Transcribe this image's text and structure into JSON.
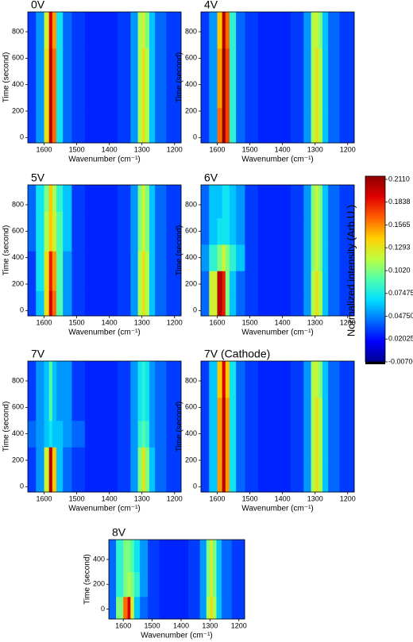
{
  "chart_data": [
    {
      "type": "heatmap",
      "title": "0V",
      "xlabel": "Wavenumber (cm⁻¹)",
      "ylabel": "Time (second)",
      "xlim": [
        1650,
        1180
      ],
      "ylim": [
        -40,
        950
      ],
      "xticks": [
        1600,
        1500,
        1400,
        1300,
        1200
      ],
      "yticks": [
        0,
        200,
        400,
        600,
        800
      ],
      "x": [
        1640,
        1610,
        1590,
        1580,
        1570,
        1555,
        1530,
        1500,
        1450,
        1400,
        1350,
        1320,
        1305,
        1295,
        1285,
        1270,
        1250,
        1200
      ],
      "y": [
        0,
        450,
        900
      ],
      "z": [
        [
          0.03,
          0.05,
          0.13,
          0.2,
          0.16,
          0.07,
          0.04,
          0.03,
          0.025,
          0.025,
          0.03,
          0.05,
          0.11,
          0.13,
          0.11,
          0.06,
          0.04,
          0.03
        ],
        [
          0.03,
          0.05,
          0.13,
          0.2,
          0.16,
          0.07,
          0.04,
          0.03,
          0.025,
          0.025,
          0.03,
          0.05,
          0.11,
          0.13,
          0.11,
          0.06,
          0.04,
          0.03
        ],
        [
          0.03,
          0.05,
          0.12,
          0.19,
          0.15,
          0.07,
          0.04,
          0.03,
          0.025,
          0.025,
          0.03,
          0.05,
          0.11,
          0.12,
          0.1,
          0.06,
          0.04,
          0.03
        ]
      ]
    },
    {
      "type": "heatmap",
      "title": "4V",
      "xlabel": "Wavenumber (cm⁻¹)",
      "ylabel": "Time (second)",
      "xlim": [
        1650,
        1180
      ],
      "ylim": [
        -40,
        950
      ],
      "xticks": [
        1600,
        1500,
        1400,
        1300,
        1200
      ],
      "yticks": [
        0,
        200,
        400,
        600,
        800
      ],
      "x": [
        1640,
        1610,
        1590,
        1580,
        1570,
        1555,
        1530,
        1500,
        1450,
        1400,
        1350,
        1320,
        1305,
        1295,
        1285,
        1270,
        1250,
        1200
      ],
      "y": [
        0,
        450,
        900
      ],
      "z": [
        [
          0.03,
          0.05,
          0.16,
          0.21,
          0.17,
          0.08,
          0.04,
          0.03,
          0.025,
          0.025,
          0.03,
          0.05,
          0.11,
          0.13,
          0.11,
          0.06,
          0.04,
          0.03
        ],
        [
          0.03,
          0.05,
          0.15,
          0.21,
          0.17,
          0.08,
          0.04,
          0.03,
          0.025,
          0.025,
          0.03,
          0.05,
          0.11,
          0.13,
          0.11,
          0.06,
          0.04,
          0.03
        ],
        [
          0.03,
          0.05,
          0.14,
          0.2,
          0.16,
          0.08,
          0.04,
          0.03,
          0.025,
          0.025,
          0.03,
          0.05,
          0.11,
          0.12,
          0.1,
          0.06,
          0.04,
          0.03
        ]
      ]
    },
    {
      "type": "heatmap",
      "title": "5V",
      "xlabel": "Wavenumber (cm⁻¹)",
      "ylabel": "Time (second)",
      "xlim": [
        1650,
        1180
      ],
      "ylim": [
        -40,
        950
      ],
      "xticks": [
        1600,
        1500,
        1400,
        1300,
        1200
      ],
      "yticks": [
        0,
        200,
        400,
        600,
        800
      ],
      "x": [
        1640,
        1610,
        1590,
        1580,
        1570,
        1555,
        1530,
        1500,
        1450,
        1400,
        1350,
        1320,
        1305,
        1295,
        1285,
        1270,
        1250,
        1200
      ],
      "y": [
        0,
        300,
        600,
        900
      ],
      "z": [
        [
          0.03,
          0.06,
          0.13,
          0.19,
          0.16,
          0.09,
          0.05,
          0.03,
          0.025,
          0.025,
          0.03,
          0.05,
          0.11,
          0.13,
          0.11,
          0.06,
          0.04,
          0.03
        ],
        [
          0.03,
          0.07,
          0.13,
          0.18,
          0.15,
          0.09,
          0.05,
          0.03,
          0.025,
          0.025,
          0.03,
          0.05,
          0.11,
          0.13,
          0.11,
          0.06,
          0.04,
          0.03
        ],
        [
          0.04,
          0.07,
          0.11,
          0.14,
          0.12,
          0.09,
          0.06,
          0.03,
          0.025,
          0.025,
          0.03,
          0.05,
          0.1,
          0.12,
          0.1,
          0.06,
          0.04,
          0.03
        ],
        [
          0.04,
          0.07,
          0.1,
          0.14,
          0.11,
          0.08,
          0.06,
          0.03,
          0.025,
          0.025,
          0.03,
          0.05,
          0.1,
          0.12,
          0.1,
          0.06,
          0.04,
          0.03
        ]
      ]
    },
    {
      "type": "heatmap",
      "title": "6V",
      "xlabel": "Wavenumber (cm⁻¹)",
      "ylabel": "Time (second)",
      "xlim": [
        1650,
        1180
      ],
      "ylim": [
        -40,
        950
      ],
      "xticks": [
        1600,
        1500,
        1400,
        1300,
        1200
      ],
      "yticks": [
        0,
        200,
        400,
        600,
        800
      ],
      "x": [
        1640,
        1610,
        1590,
        1580,
        1570,
        1555,
        1530,
        1500,
        1450,
        1400,
        1350,
        1320,
        1305,
        1295,
        1285,
        1270,
        1250,
        1200
      ],
      "y": [
        0,
        200,
        400,
        600,
        800
      ],
      "z": [
        [
          0.04,
          0.12,
          0.2,
          0.18,
          0.1,
          0.06,
          0.04,
          0.03,
          0.025,
          0.025,
          0.03,
          0.05,
          0.11,
          0.13,
          0.11,
          0.06,
          0.04,
          0.03
        ],
        [
          0.04,
          0.12,
          0.2,
          0.18,
          0.1,
          0.06,
          0.04,
          0.03,
          0.025,
          0.025,
          0.03,
          0.05,
          0.11,
          0.13,
          0.11,
          0.06,
          0.04,
          0.03
        ],
        [
          0.05,
          0.08,
          0.1,
          0.12,
          0.1,
          0.08,
          0.06,
          0.03,
          0.025,
          0.025,
          0.03,
          0.05,
          0.1,
          0.12,
          0.1,
          0.06,
          0.04,
          0.03
        ],
        [
          0.04,
          0.06,
          0.07,
          0.07,
          0.07,
          0.06,
          0.05,
          0.03,
          0.025,
          0.025,
          0.03,
          0.05,
          0.1,
          0.12,
          0.1,
          0.06,
          0.04,
          0.03
        ],
        [
          0.04,
          0.06,
          0.06,
          0.07,
          0.07,
          0.06,
          0.05,
          0.03,
          0.025,
          0.025,
          0.03,
          0.05,
          0.1,
          0.12,
          0.1,
          0.06,
          0.04,
          0.03
        ]
      ]
    },
    {
      "type": "heatmap",
      "title": "7V",
      "xlabel": "Wavenumber (cm⁻¹)",
      "ylabel": "Time (second)",
      "xlim": [
        1650,
        1180
      ],
      "ylim": [
        -40,
        950
      ],
      "xticks": [
        1600,
        1500,
        1400,
        1300,
        1200
      ],
      "yticks": [
        0,
        200,
        400,
        600,
        800
      ],
      "x": [
        1640,
        1610,
        1590,
        1580,
        1570,
        1555,
        1530,
        1500,
        1450,
        1400,
        1350,
        1320,
        1305,
        1295,
        1285,
        1270,
        1250,
        1200
      ],
      "y": [
        0,
        200,
        400,
        600,
        800
      ],
      "z": [
        [
          0.03,
          0.05,
          0.12,
          0.2,
          0.14,
          0.06,
          0.04,
          0.03,
          0.025,
          0.025,
          0.03,
          0.05,
          0.1,
          0.13,
          0.1,
          0.06,
          0.04,
          0.03
        ],
        [
          0.03,
          0.05,
          0.12,
          0.2,
          0.14,
          0.06,
          0.04,
          0.03,
          0.025,
          0.025,
          0.03,
          0.05,
          0.1,
          0.13,
          0.1,
          0.06,
          0.04,
          0.03
        ],
        [
          0.04,
          0.05,
          0.06,
          0.07,
          0.06,
          0.06,
          0.05,
          0.04,
          0.025,
          0.025,
          0.03,
          0.05,
          0.08,
          0.09,
          0.08,
          0.05,
          0.04,
          0.03
        ],
        [
          0.03,
          0.05,
          0.06,
          0.09,
          0.06,
          0.05,
          0.05,
          0.03,
          0.025,
          0.025,
          0.03,
          0.05,
          0.07,
          0.08,
          0.07,
          0.05,
          0.04,
          0.03
        ],
        [
          0.03,
          0.05,
          0.06,
          0.09,
          0.06,
          0.05,
          0.05,
          0.03,
          0.025,
          0.025,
          0.03,
          0.05,
          0.07,
          0.08,
          0.07,
          0.05,
          0.04,
          0.03
        ]
      ]
    },
    {
      "type": "heatmap",
      "title": "7V (Cathode)",
      "xlabel": "Wavenumber (cm⁻¹)",
      "ylabel": "Time (second)",
      "xlim": [
        1650,
        1180
      ],
      "ylim": [
        -40,
        950
      ],
      "xticks": [
        1600,
        1500,
        1400,
        1300,
        1200
      ],
      "yticks": [
        0,
        200,
        400,
        600,
        800
      ],
      "x": [
        1640,
        1610,
        1590,
        1580,
        1570,
        1555,
        1530,
        1500,
        1450,
        1400,
        1350,
        1320,
        1305,
        1295,
        1285,
        1270,
        1250,
        1200
      ],
      "y": [
        0,
        450,
        900
      ],
      "z": [
        [
          0.03,
          0.06,
          0.15,
          0.2,
          0.15,
          0.07,
          0.04,
          0.03,
          0.025,
          0.025,
          0.03,
          0.05,
          0.11,
          0.13,
          0.11,
          0.06,
          0.04,
          0.03
        ],
        [
          0.03,
          0.06,
          0.15,
          0.2,
          0.15,
          0.07,
          0.04,
          0.03,
          0.025,
          0.025,
          0.03,
          0.05,
          0.11,
          0.13,
          0.11,
          0.06,
          0.04,
          0.03
        ],
        [
          0.03,
          0.06,
          0.14,
          0.19,
          0.14,
          0.07,
          0.04,
          0.03,
          0.025,
          0.025,
          0.03,
          0.05,
          0.11,
          0.12,
          0.1,
          0.06,
          0.04,
          0.03
        ]
      ]
    },
    {
      "type": "heatmap",
      "title": "8V",
      "xlabel": "Wavenumber (cm⁻¹)",
      "ylabel": "Time (second)",
      "xlim": [
        1650,
        1180
      ],
      "ylim": [
        -80,
        560
      ],
      "xticks": [
        1600,
        1500,
        1400,
        1300,
        1200
      ],
      "yticks": [
        0,
        200,
        400
      ],
      "x": [
        1640,
        1610,
        1590,
        1580,
        1570,
        1555,
        1530,
        1500,
        1450,
        1400,
        1350,
        1320,
        1305,
        1295,
        1285,
        1270,
        1250,
        1200
      ],
      "y": [
        0,
        200,
        400
      ],
      "z": [
        [
          0.04,
          0.1,
          0.16,
          0.19,
          0.12,
          0.06,
          0.04,
          0.03,
          0.025,
          0.025,
          0.03,
          0.05,
          0.11,
          0.13,
          0.11,
          0.06,
          0.04,
          0.03
        ],
        [
          0.04,
          0.08,
          0.1,
          0.11,
          0.1,
          0.08,
          0.05,
          0.03,
          0.025,
          0.025,
          0.03,
          0.05,
          0.1,
          0.12,
          0.1,
          0.06,
          0.04,
          0.03
        ],
        [
          0.04,
          0.08,
          0.1,
          0.1,
          0.09,
          0.07,
          0.05,
          0.03,
          0.025,
          0.025,
          0.03,
          0.05,
          0.1,
          0.12,
          0.1,
          0.06,
          0.04,
          0.03
        ]
      ]
    },
    {
      "type": "colorbar",
      "label": "Normalized intensity (Arb.U.)",
      "zlim": [
        -0.007,
        0.211
      ],
      "zticks": [
        {
          "value": 0.211,
          "label": "0.2110"
        },
        0.1838,
        0.1565,
        0.1293,
        {
          "value": 0.102,
          "label": "0.1020"
        },
        0.07475,
        {
          "value": 0.0475,
          "label": "0.04750"
        },
        0.02025,
        {
          "value": -0.007,
          "label": "-0.007000"
        }
      ],
      "colors": [
        "#00008f",
        "#0000ff",
        "#006fff",
        "#00dfff",
        "#4fffaf",
        "#bfff3f",
        "#ffcf00",
        "#ff5f00",
        "#df0000",
        "#8f0000"
      ]
    }
  ]
}
